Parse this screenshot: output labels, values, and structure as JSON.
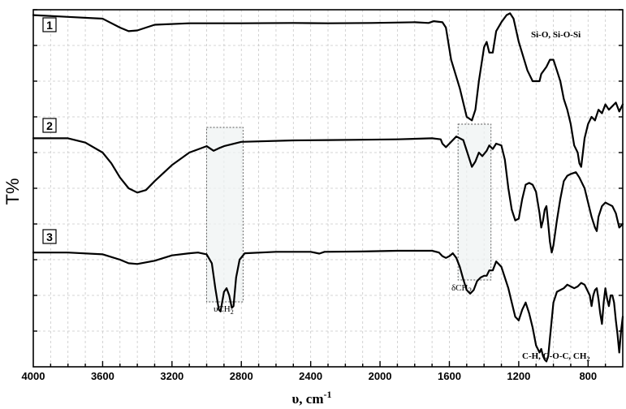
{
  "chart_data": {
    "type": "line",
    "title": "",
    "xlabel": "υ, cm",
    "xlabel_sup": "-1",
    "ylabel": "T%",
    "xlim": [
      4000,
      600
    ],
    "x_reversed": true,
    "grid": true,
    "x_ticks": [
      4000,
      3600,
      3200,
      2800,
      2400,
      2000,
      1600,
      1200,
      800
    ],
    "x_tick_labels": [
      "4000",
      "3600",
      "3200",
      "2800",
      "2400",
      "2000",
      "1600",
      "1200",
      "800"
    ],
    "series": [
      {
        "name": "1",
        "points": [
          [
            4000,
            0.985
          ],
          [
            3800,
            0.98
          ],
          [
            3600,
            0.975
          ],
          [
            3500,
            0.95
          ],
          [
            3450,
            0.94
          ],
          [
            3400,
            0.942
          ],
          [
            3300,
            0.958
          ],
          [
            3100,
            0.962
          ],
          [
            2800,
            0.962
          ],
          [
            2500,
            0.963
          ],
          [
            2300,
            0.962
          ],
          [
            2050,
            0.963
          ],
          [
            1800,
            0.965
          ],
          [
            1720,
            0.963
          ],
          [
            1690,
            0.968
          ],
          [
            1640,
            0.965
          ],
          [
            1620,
            0.95
          ],
          [
            1590,
            0.86
          ],
          [
            1540,
            0.78
          ],
          [
            1500,
            0.7
          ],
          [
            1470,
            0.69
          ],
          [
            1450,
            0.72
          ],
          [
            1430,
            0.8
          ],
          [
            1400,
            0.895
          ],
          [
            1385,
            0.91
          ],
          [
            1370,
            0.88
          ],
          [
            1350,
            0.88
          ],
          [
            1330,
            0.94
          ],
          [
            1300,
            0.965
          ],
          [
            1270,
            0.985
          ],
          [
            1250,
            0.99
          ],
          [
            1230,
            0.975
          ],
          [
            1200,
            0.91
          ],
          [
            1150,
            0.83
          ],
          [
            1120,
            0.8
          ],
          [
            1100,
            0.8
          ],
          [
            1080,
            0.8
          ],
          [
            1070,
            0.82
          ],
          [
            1040,
            0.84
          ],
          [
            1020,
            0.86
          ],
          [
            1000,
            0.86
          ],
          [
            980,
            0.83
          ],
          [
            960,
            0.8
          ],
          [
            940,
            0.75
          ],
          [
            920,
            0.72
          ],
          [
            900,
            0.68
          ],
          [
            880,
            0.62
          ],
          [
            860,
            0.6
          ],
          [
            850,
            0.57
          ],
          [
            840,
            0.56
          ],
          [
            830,
            0.6
          ],
          [
            820,
            0.64
          ],
          [
            800,
            0.68
          ],
          [
            780,
            0.7
          ],
          [
            760,
            0.69
          ],
          [
            740,
            0.72
          ],
          [
            720,
            0.71
          ],
          [
            700,
            0.735
          ],
          [
            680,
            0.72
          ],
          [
            660,
            0.73
          ],
          [
            640,
            0.74
          ],
          [
            620,
            0.715
          ],
          [
            600,
            0.735
          ]
        ]
      },
      {
        "name": "2",
        "points": [
          [
            4000,
            0.64
          ],
          [
            3800,
            0.64
          ],
          [
            3700,
            0.628
          ],
          [
            3600,
            0.6
          ],
          [
            3550,
            0.57
          ],
          [
            3500,
            0.53
          ],
          [
            3450,
            0.5
          ],
          [
            3400,
            0.488
          ],
          [
            3350,
            0.495
          ],
          [
            3300,
            0.52
          ],
          [
            3200,
            0.565
          ],
          [
            3100,
            0.6
          ],
          [
            3000,
            0.618
          ],
          [
            2960,
            0.605
          ],
          [
            2930,
            0.612
          ],
          [
            2900,
            0.618
          ],
          [
            2850,
            0.624
          ],
          [
            2800,
            0.63
          ],
          [
            2500,
            0.634
          ],
          [
            2300,
            0.635
          ],
          [
            2100,
            0.636
          ],
          [
            1900,
            0.637
          ],
          [
            1700,
            0.64
          ],
          [
            1650,
            0.637
          ],
          [
            1640,
            0.625
          ],
          [
            1620,
            0.615
          ],
          [
            1600,
            0.625
          ],
          [
            1560,
            0.645
          ],
          [
            1520,
            0.635
          ],
          [
            1490,
            0.59
          ],
          [
            1470,
            0.56
          ],
          [
            1450,
            0.575
          ],
          [
            1430,
            0.6
          ],
          [
            1410,
            0.59
          ],
          [
            1385,
            0.605
          ],
          [
            1370,
            0.62
          ],
          [
            1350,
            0.61
          ],
          [
            1330,
            0.625
          ],
          [
            1300,
            0.62
          ],
          [
            1280,
            0.58
          ],
          [
            1260,
            0.5
          ],
          [
            1240,
            0.44
          ],
          [
            1220,
            0.41
          ],
          [
            1200,
            0.415
          ],
          [
            1180,
            0.47
          ],
          [
            1160,
            0.51
          ],
          [
            1140,
            0.515
          ],
          [
            1120,
            0.51
          ],
          [
            1100,
            0.49
          ],
          [
            1080,
            0.43
          ],
          [
            1070,
            0.39
          ],
          [
            1060,
            0.41
          ],
          [
            1050,
            0.44
          ],
          [
            1040,
            0.45
          ],
          [
            1030,
            0.4
          ],
          [
            1020,
            0.35
          ],
          [
            1010,
            0.32
          ],
          [
            1000,
            0.34
          ],
          [
            980,
            0.41
          ],
          [
            960,
            0.47
          ],
          [
            940,
            0.52
          ],
          [
            920,
            0.535
          ],
          [
            900,
            0.54
          ],
          [
            870,
            0.545
          ],
          [
            850,
            0.53
          ],
          [
            820,
            0.5
          ],
          [
            800,
            0.46
          ],
          [
            780,
            0.42
          ],
          [
            760,
            0.39
          ],
          [
            750,
            0.38
          ],
          [
            740,
            0.42
          ],
          [
            720,
            0.45
          ],
          [
            700,
            0.46
          ],
          [
            680,
            0.455
          ],
          [
            660,
            0.45
          ],
          [
            640,
            0.43
          ],
          [
            630,
            0.41
          ],
          [
            620,
            0.39
          ],
          [
            600,
            0.4
          ]
        ]
      },
      {
        "name": "3",
        "points": [
          [
            4000,
            0.32
          ],
          [
            3800,
            0.32
          ],
          [
            3600,
            0.315
          ],
          [
            3500,
            0.3
          ],
          [
            3450,
            0.29
          ],
          [
            3400,
            0.288
          ],
          [
            3300,
            0.297
          ],
          [
            3200,
            0.312
          ],
          [
            3100,
            0.318
          ],
          [
            3050,
            0.32
          ],
          [
            3000,
            0.315
          ],
          [
            2970,
            0.29
          ],
          [
            2950,
            0.22
          ],
          [
            2930,
            0.16
          ],
          [
            2920,
            0.155
          ],
          [
            2900,
            0.21
          ],
          [
            2885,
            0.22
          ],
          [
            2870,
            0.2
          ],
          [
            2855,
            0.165
          ],
          [
            2845,
            0.17
          ],
          [
            2830,
            0.25
          ],
          [
            2810,
            0.3
          ],
          [
            2780,
            0.318
          ],
          [
            2600,
            0.322
          ],
          [
            2400,
            0.322
          ],
          [
            2350,
            0.317
          ],
          [
            2320,
            0.322
          ],
          [
            2100,
            0.323
          ],
          [
            1900,
            0.325
          ],
          [
            1700,
            0.325
          ],
          [
            1660,
            0.32
          ],
          [
            1640,
            0.31
          ],
          [
            1620,
            0.305
          ],
          [
            1600,
            0.31
          ],
          [
            1580,
            0.318
          ],
          [
            1560,
            0.305
          ],
          [
            1540,
            0.28
          ],
          [
            1520,
            0.245
          ],
          [
            1500,
            0.215
          ],
          [
            1480,
            0.205
          ],
          [
            1460,
            0.215
          ],
          [
            1440,
            0.24
          ],
          [
            1420,
            0.25
          ],
          [
            1400,
            0.255
          ],
          [
            1385,
            0.255
          ],
          [
            1370,
            0.27
          ],
          [
            1350,
            0.27
          ],
          [
            1330,
            0.295
          ],
          [
            1300,
            0.28
          ],
          [
            1280,
            0.25
          ],
          [
            1260,
            0.22
          ],
          [
            1240,
            0.18
          ],
          [
            1220,
            0.14
          ],
          [
            1200,
            0.13
          ],
          [
            1180,
            0.16
          ],
          [
            1160,
            0.18
          ],
          [
            1140,
            0.15
          ],
          [
            1120,
            0.11
          ],
          [
            1100,
            0.06
          ],
          [
            1080,
            0.04
          ],
          [
            1070,
            0.05
          ],
          [
            1060,
            0.03
          ],
          [
            1050,
            0.02
          ],
          [
            1040,
            0.015
          ],
          [
            1030,
            0.03
          ],
          [
            1020,
            0.08
          ],
          [
            1000,
            0.18
          ],
          [
            980,
            0.21
          ],
          [
            960,
            0.215
          ],
          [
            940,
            0.22
          ],
          [
            920,
            0.23
          ],
          [
            900,
            0.225
          ],
          [
            880,
            0.22
          ],
          [
            860,
            0.225
          ],
          [
            840,
            0.235
          ],
          [
            820,
            0.23
          ],
          [
            800,
            0.21
          ],
          [
            790,
            0.2
          ],
          [
            780,
            0.17
          ],
          [
            770,
            0.2
          ],
          [
            760,
            0.215
          ],
          [
            750,
            0.22
          ],
          [
            740,
            0.19
          ],
          [
            730,
            0.15
          ],
          [
            720,
            0.12
          ],
          [
            710,
            0.18
          ],
          [
            700,
            0.22
          ],
          [
            690,
            0.19
          ],
          [
            680,
            0.17
          ],
          [
            670,
            0.2
          ],
          [
            660,
            0.2
          ],
          [
            650,
            0.18
          ],
          [
            640,
            0.13
          ],
          [
            630,
            0.09
          ],
          [
            620,
            0.04
          ],
          [
            610,
            0.1
          ],
          [
            600,
            0.14
          ]
        ]
      }
    ],
    "annotations": {
      "si_o": "Si-O, Si-O-Si",
      "v_ch2": "υCH",
      "v_ch2_sub": "2",
      "delta_ch2": "δCH",
      "delta_ch2_sub": "2",
      "c_h": "C-H, C-O-C, CH",
      "c_h_sub": "2"
    },
    "highlight_regions": [
      [
        3000,
        2790
      ],
      [
        1550,
        1360
      ]
    ]
  }
}
